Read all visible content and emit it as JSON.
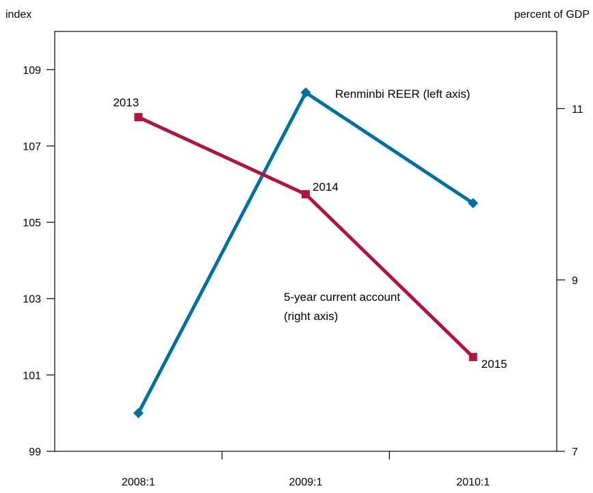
{
  "chart_data": {
    "type": "line",
    "y_left_label": "index",
    "y_right_label": "percent of GDP",
    "categories": [
      "2008:1",
      "2009:1",
      "2010:1"
    ],
    "y_left_ticks": [
      "99",
      "101",
      "103",
      "105",
      "107",
      "109"
    ],
    "y_left_lim": [
      99,
      110
    ],
    "y_right_ticks": [
      "7",
      "9",
      "11"
    ],
    "y_right_lim": [
      7,
      11.9
    ],
    "series": [
      {
        "name": "Renminbi REER (left axis)",
        "axis": "left",
        "color": "#0070a0",
        "marker": "diamond",
        "values": [
          100.0,
          108.4,
          105.5
        ]
      },
      {
        "name": "5-year current account (right axis)",
        "axis": "right",
        "color": "#b2123e",
        "marker": "square",
        "values": [
          10.9,
          10.0,
          8.1
        ],
        "point_labels": [
          "2013",
          "2014",
          "2015"
        ]
      }
    ],
    "grid": false,
    "legend": "inline annotations"
  },
  "annotations": {
    "reer_label": "Renminbi REER (left axis)",
    "ca_label_line1": "5-year current account",
    "ca_label_line2": "(right axis)"
  }
}
